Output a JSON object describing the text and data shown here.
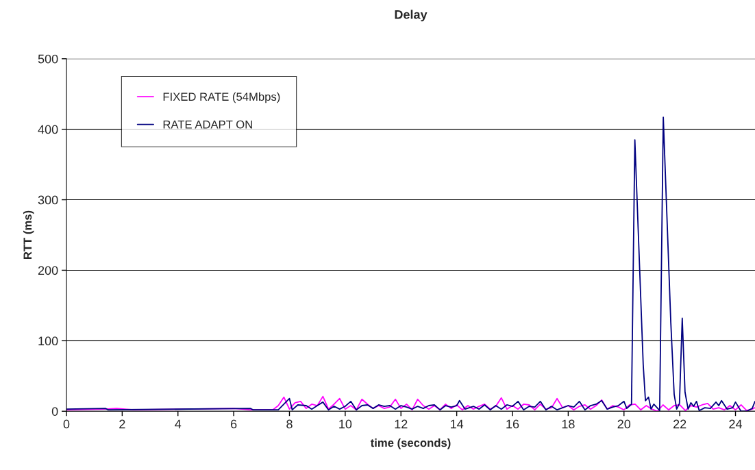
{
  "chart_data": {
    "type": "line",
    "title": "Delay",
    "xlabel": "time (seconds)",
    "ylabel": "RTT (ms)",
    "xlim": [
      0,
      24.7
    ],
    "xticks": [
      0,
      2,
      4,
      6,
      8,
      10,
      12,
      14,
      16,
      18,
      20,
      22,
      24
    ],
    "ylim": [
      0,
      500
    ],
    "yticks": [
      0,
      100,
      200,
      300,
      400,
      500
    ],
    "grid": "y",
    "legend": "top left",
    "marker": "none",
    "line_style": "solid",
    "series": [
      {
        "name": "FIXED RATE (54Mbps)",
        "color": "#ff00ff",
        "x": [
          0,
          1.4,
          1.8,
          2.4,
          6.0,
          6.6,
          7.4,
          7.6,
          7.8,
          8.0,
          8.2,
          8.4,
          8.6,
          8.8,
          9.0,
          9.2,
          9.4,
          9.6,
          9.8,
          10.0,
          10.2,
          10.4,
          10.6,
          10.8,
          11.0,
          11.2,
          11.4,
          11.6,
          11.8,
          12.0,
          12.2,
          12.4,
          12.6,
          12.8,
          13.0,
          13.2,
          13.4,
          13.6,
          13.8,
          14.0,
          14.2,
          14.4,
          14.6,
          14.8,
          15.0,
          15.2,
          15.4,
          15.6,
          15.8,
          16.0,
          16.2,
          16.4,
          16.6,
          16.8,
          17.0,
          17.2,
          17.4,
          17.6,
          17.8,
          18.0,
          18.2,
          18.4,
          18.6,
          18.8,
          19.0,
          19.2,
          19.4,
          19.6,
          19.8,
          20.0,
          20.2,
          20.4,
          20.6,
          20.8,
          21.0,
          21.2,
          21.4,
          21.6,
          21.8,
          22.0,
          22.2,
          22.4,
          22.6,
          22.8,
          23.0,
          23.2,
          23.4,
          23.6,
          23.8,
          24.0,
          24.2,
          24.4,
          24.6,
          24.7
        ],
        "values": [
          2,
          3,
          4,
          2,
          4,
          2,
          2,
          8,
          20,
          3,
          12,
          14,
          4,
          10,
          8,
          21,
          3,
          10,
          18,
          3,
          8,
          2,
          17,
          10,
          4,
          8,
          4,
          6,
          17,
          4,
          10,
          2,
          17,
          8,
          3,
          8,
          2,
          10,
          4,
          9,
          2,
          8,
          3,
          7,
          10,
          3,
          7,
          19,
          3,
          8,
          3,
          10,
          9,
          2,
          10,
          3,
          5,
          18,
          5,
          8,
          2,
          7,
          9,
          3,
          8,
          16,
          3,
          8,
          6,
          2,
          9,
          10,
          2,
          8,
          3,
          0,
          9,
          2,
          8,
          9,
          1,
          8,
          6,
          9,
          11,
          3,
          5,
          2,
          8,
          2,
          9,
          1,
          3,
          5
        ]
      },
      {
        "name": "RATE ADAPT ON",
        "color": "#000080",
        "x": [
          0,
          1.4,
          1.5,
          6.6,
          6.7,
          7.6,
          8.0,
          8.1,
          8.3,
          8.6,
          8.8,
          9.0,
          9.2,
          9.4,
          9.6,
          9.8,
          10.0,
          10.2,
          10.4,
          10.6,
          10.8,
          11.0,
          11.2,
          11.4,
          11.6,
          11.8,
          12.0,
          12.2,
          12.4,
          12.6,
          12.8,
          13.0,
          13.2,
          13.4,
          13.6,
          13.8,
          14.0,
          14.1,
          14.3,
          14.6,
          14.8,
          15.0,
          15.2,
          15.4,
          15.6,
          15.8,
          16.0,
          16.2,
          16.4,
          16.6,
          16.8,
          17.0,
          17.2,
          17.4,
          17.6,
          17.8,
          18.0,
          18.2,
          18.4,
          18.6,
          18.8,
          19.0,
          19.2,
          19.4,
          19.6,
          19.8,
          20.0,
          20.1,
          20.27,
          20.39,
          20.69,
          20.77,
          20.88,
          20.97,
          21.07,
          21.28,
          21.41,
          21.68,
          21.8,
          21.89,
          21.99,
          22.09,
          22.19,
          22.3,
          22.4,
          22.5,
          22.6,
          22.7,
          22.9,
          23.1,
          23.3,
          23.4,
          23.5,
          23.7,
          23.9,
          24.0,
          24.2,
          24.4,
          24.6,
          24.7
        ],
        "values": [
          3,
          4,
          2,
          4,
          2,
          2,
          18,
          2,
          9,
          8,
          3,
          8,
          13,
          2,
          7,
          3,
          7,
          14,
          2,
          8,
          9,
          4,
          9,
          7,
          8,
          3,
          8,
          6,
          3,
          7,
          4,
          8,
          9,
          2,
          8,
          6,
          8,
          15,
          3,
          7,
          3,
          9,
          2,
          8,
          3,
          9,
          7,
          14,
          2,
          7,
          6,
          14,
          2,
          7,
          2,
          5,
          8,
          6,
          14,
          2,
          8,
          10,
          15,
          3,
          6,
          8,
          14,
          4,
          10,
          385,
          66,
          15,
          20,
          3,
          10,
          1,
          417,
          126,
          24,
          3,
          11,
          132,
          27,
          3,
          12,
          7,
          14,
          1,
          5,
          4,
          13,
          8,
          15,
          3,
          5,
          13,
          0,
          0,
          4,
          14
        ]
      }
    ]
  }
}
